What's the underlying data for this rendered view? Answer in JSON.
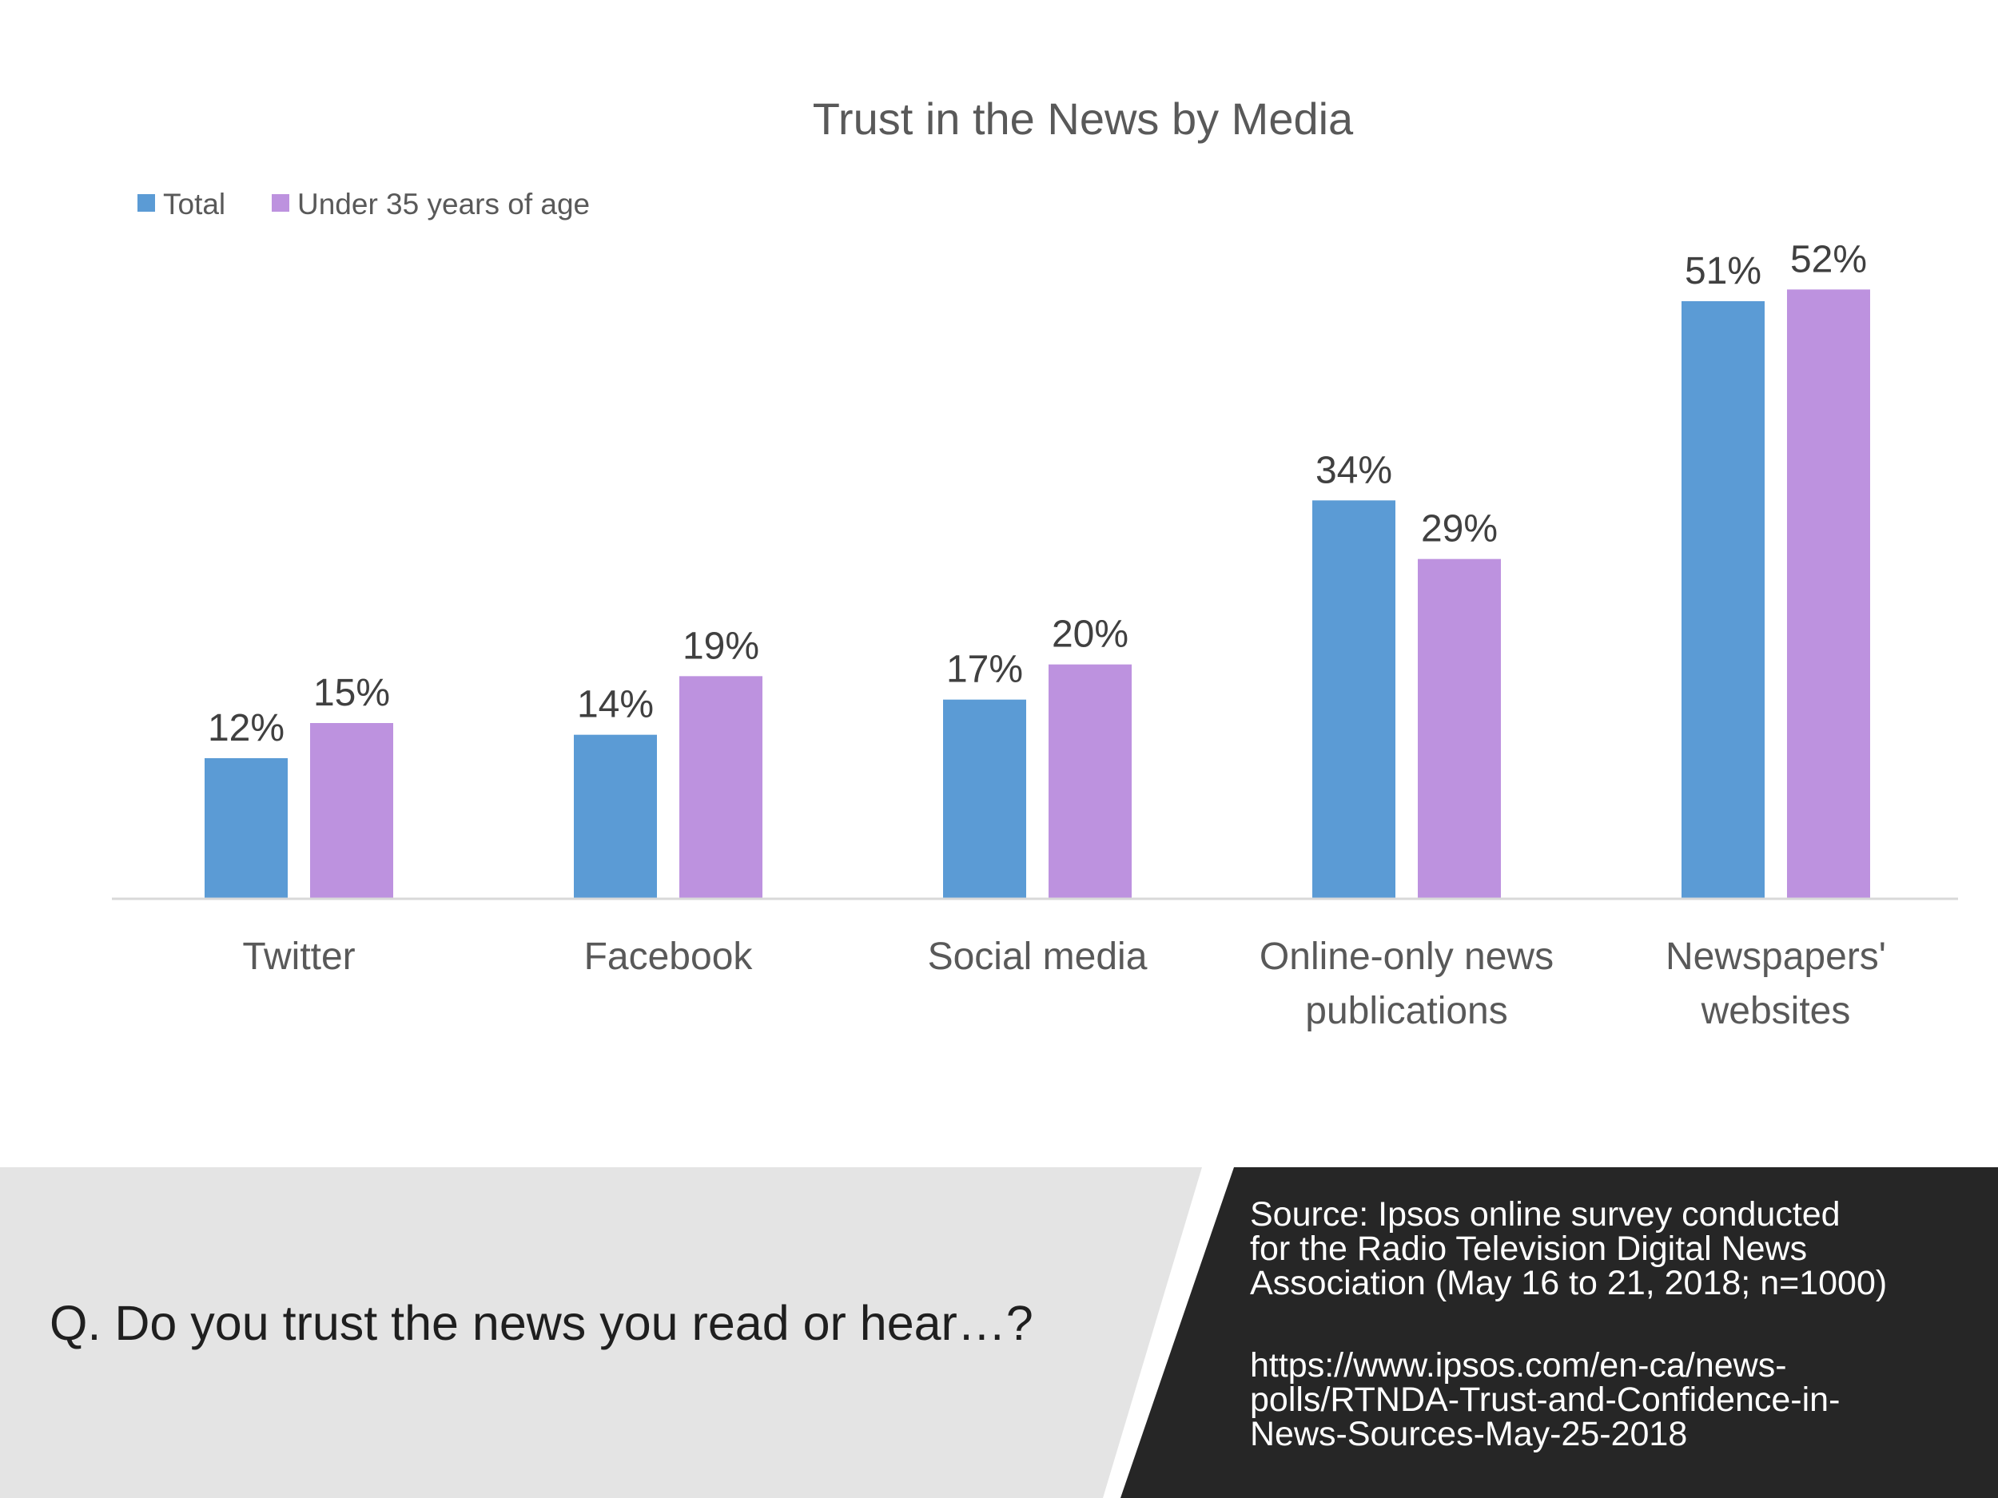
{
  "chart_data": {
    "type": "bar",
    "title": "Trust in the News by Media",
    "categories": [
      [
        "Twitter"
      ],
      [
        "Facebook"
      ],
      [
        "Social media"
      ],
      [
        "Online-only news",
        "publications"
      ],
      [
        "Newspapers'",
        "websites"
      ]
    ],
    "series": [
      {
        "name": "Total",
        "color": "#5b9bd5",
        "values": [
          12,
          14,
          17,
          34,
          51
        ],
        "labels": [
          "12%",
          "14%",
          "17%",
          "34%",
          "51%"
        ]
      },
      {
        "name": "Under 35 years of age",
        "color": "#bd92df",
        "values": [
          15,
          19,
          20,
          29,
          52
        ],
        "labels": [
          "15%",
          "19%",
          "20%",
          "29%",
          "52%"
        ]
      }
    ],
    "ylim": [
      0,
      60
    ],
    "grid": false,
    "legend_position": "top-left",
    "xlabel": "",
    "ylabel": ""
  },
  "footer": {
    "question": "Q. Do you trust the news you read or hear…?",
    "source_lines": [
      "Source:  Ipsos online survey conducted",
      "for  the Radio Television Digital News",
      "Association (May 16 to 21, 2018; n=1000)"
    ],
    "url_lines": [
      "https://www.ipsos.com/en-ca/news-",
      "polls/RTNDA-Trust-and-Confidence-in-",
      "News-Sources-May-25-2018"
    ],
    "left_panel_color": "#e4e4e4",
    "right_panel_color": "#262626"
  }
}
